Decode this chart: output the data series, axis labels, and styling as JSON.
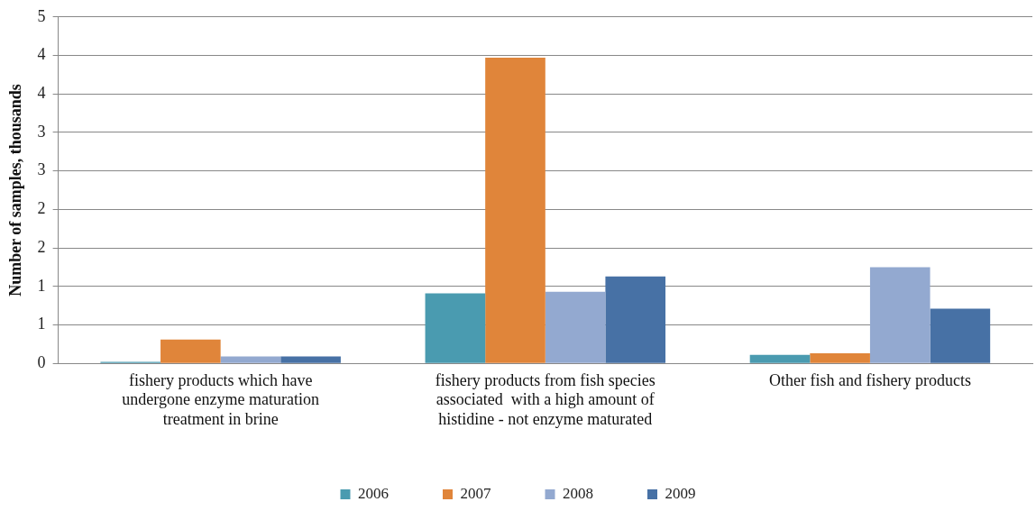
{
  "chart_data": {
    "type": "bar",
    "ylabel": "Number of samples, thousands",
    "categories": [
      "fishery products which have undergone enzyme maturation treatment in brine",
      "fishery products from fish species associated  with a high amount of histidine - not enzyme maturated",
      "Other fish and fishery products"
    ],
    "series": [
      {
        "name": "2006",
        "color": "#4a9bb0",
        "values": [
          0.02,
          0.91,
          0.11
        ]
      },
      {
        "name": "2007",
        "color": "#e0853a",
        "values": [
          0.31,
          3.97,
          0.13
        ]
      },
      {
        "name": "2008",
        "color": "#93a9d0",
        "values": [
          0.09,
          0.93,
          1.25
        ]
      },
      {
        "name": "2009",
        "color": "#4771a5",
        "values": [
          0.09,
          1.13,
          0.71
        ]
      }
    ],
    "ylim": [
      0,
      4.5
    ],
    "yticks": [
      {
        "value": 0,
        "label": "0"
      },
      {
        "value": 0.5,
        "label": "1"
      },
      {
        "value": 1,
        "label": "1"
      },
      {
        "value": 1.5,
        "label": "2"
      },
      {
        "value": 2,
        "label": "2"
      },
      {
        "value": 2.5,
        "label": "3"
      },
      {
        "value": 3,
        "label": "3"
      },
      {
        "value": 3.5,
        "label": "4"
      },
      {
        "value": 4,
        "label": "4"
      },
      {
        "value": 4.5,
        "label": "5"
      }
    ],
    "grid": "y",
    "legend": "bottom"
  }
}
